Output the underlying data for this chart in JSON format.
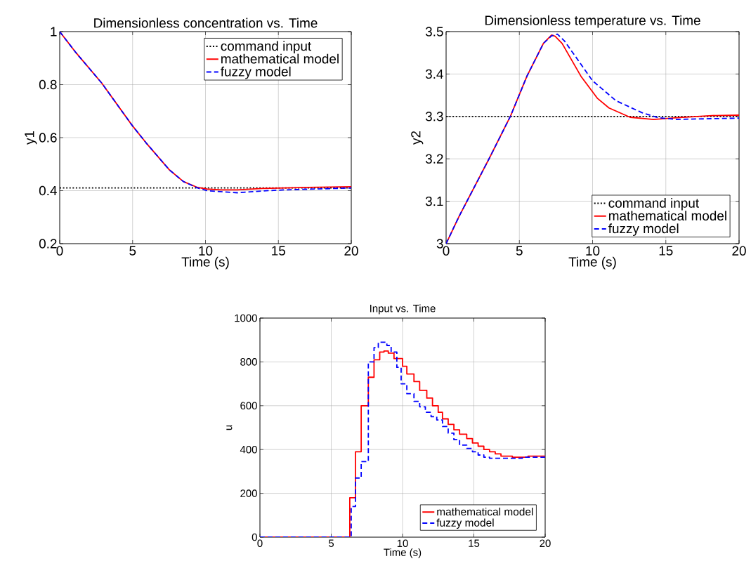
{
  "chart_data": [
    {
      "type": "line",
      "title": "Dimensionless concentration vs. Time",
      "xlabel": "Time (s)",
      "ylabel": "y1",
      "xlim": [
        0,
        20
      ],
      "ylim": [
        0.2,
        1
      ],
      "xticks": [
        0,
        5,
        10,
        15,
        20
      ],
      "yticks": [
        0.2,
        0.4,
        0.6,
        0.8,
        1
      ],
      "grid": true,
      "legend": "top right",
      "series": [
        {
          "name": "command input",
          "color": "#000000",
          "line_style": "dotted",
          "x": [
            0,
            20
          ],
          "values": [
            0.41,
            0.41
          ]
        },
        {
          "name": "mathematical model",
          "color": "#ff0000",
          "line_style": "solid",
          "x": [
            0,
            1.12,
            2.88,
            4.97,
            5.93,
            7.53,
            8.49,
            9.46,
            10.1,
            11.06,
            12.2,
            13.9,
            17.1,
            20
          ],
          "values": [
            1,
            0.92,
            0.806,
            0.646,
            0.58,
            0.478,
            0.434,
            0.412,
            0.406,
            0.403,
            0.403,
            0.408,
            0.412,
            0.415
          ]
        },
        {
          "name": "fuzzy model",
          "color": "#0000ff",
          "line_style": "dashed",
          "x": [
            0,
            1.12,
            2.88,
            4.97,
            5.93,
            7.53,
            8.49,
            9.46,
            10.1,
            12.2,
            13.9,
            15.5,
            20
          ],
          "values": [
            1,
            0.92,
            0.806,
            0.646,
            0.58,
            0.478,
            0.434,
            0.41,
            0.4,
            0.392,
            0.399,
            0.403,
            0.41
          ]
        }
      ]
    },
    {
      "type": "line",
      "title": "Dimensionless temperature vs. Time",
      "xlabel": "Time (s)",
      "ylabel": "y2",
      "xlim": [
        0,
        20
      ],
      "ylim": [
        3,
        3.5
      ],
      "xticks": [
        0,
        5,
        10,
        15,
        20
      ],
      "yticks": [
        3,
        3.1,
        3.2,
        3.3,
        3.4,
        3.5
      ],
      "grid": true,
      "legend": "bottom right",
      "series": [
        {
          "name": "command input",
          "color": "#000000",
          "line_style": "dotted",
          "x": [
            0,
            20
          ],
          "values": [
            3.3,
            3.3
          ]
        },
        {
          "name": "mathematical model",
          "color": "#ff0000",
          "line_style": "solid",
          "x": [
            0,
            0.88,
            2.96,
            4.4,
            5.52,
            6.64,
            7.2,
            7.44,
            7.92,
            9.2,
            10.32,
            11.12,
            12.56,
            14.16,
            15.76,
            18.16,
            20
          ],
          "values": [
            3.0,
            3.064,
            3.202,
            3.301,
            3.395,
            3.472,
            3.492,
            3.489,
            3.472,
            3.395,
            3.343,
            3.32,
            3.298,
            3.293,
            3.297,
            3.302,
            3.303
          ]
        },
        {
          "name": "fuzzy model",
          "color": "#0000ff",
          "line_style": "dashed",
          "x": [
            0,
            0.88,
            2.96,
            4.4,
            5.52,
            6.64,
            7.2,
            7.6,
            8.08,
            10,
            11.6,
            13.36,
            14.48,
            15.76,
            20
          ],
          "values": [
            3.0,
            3.064,
            3.202,
            3.301,
            3.395,
            3.472,
            3.49,
            3.494,
            3.478,
            3.384,
            3.337,
            3.309,
            3.297,
            3.293,
            3.296
          ]
        }
      ]
    },
    {
      "type": "step",
      "title": "Input vs. Time",
      "xlabel": "Time (s)",
      "ylabel": "u",
      "xlim": [
        0,
        20
      ],
      "ylim": [
        0,
        1000
      ],
      "xticks": [
        0,
        5,
        10,
        15,
        20
      ],
      "yticks": [
        0,
        200,
        400,
        600,
        800,
        1000
      ],
      "grid": true,
      "legend": "bottom right",
      "series": [
        {
          "name": "mathematical model",
          "color": "#ff0000",
          "line_style": "solid",
          "x": [
            0,
            6.3,
            6.7,
            7.1,
            7.6,
            8.0,
            8.4,
            8.7,
            9.0,
            9.4,
            10.0,
            10.3,
            10.8,
            11.2,
            11.7,
            12.1,
            12.5,
            12.8,
            13.2,
            13.6,
            14.0,
            14.5,
            14.9,
            15.3,
            15.7,
            16.1,
            16.5,
            16.9,
            17.3,
            17.7,
            18.8,
            20
          ],
          "values": [
            0,
            180,
            390,
            600,
            730,
            810,
            845,
            850,
            840,
            815,
            780,
            745,
            710,
            670,
            635,
            600,
            570,
            540,
            515,
            490,
            470,
            450,
            430,
            415,
            400,
            390,
            380,
            370,
            370,
            365,
            370,
            370
          ]
        },
        {
          "name": "fuzzy model",
          "color": "#0000ff",
          "line_style": "dashed",
          "x": [
            0,
            6.4,
            6.7,
            7.1,
            7.6,
            8.0,
            8.3,
            8.6,
            8.9,
            9.2,
            9.6,
            9.9,
            10.3,
            10.8,
            11.2,
            11.6,
            12.0,
            12.4,
            12.8,
            13.2,
            13.6,
            14.0,
            14.5,
            14.9,
            15.3,
            15.7,
            16.1,
            18.4,
            20
          ],
          "values": [
            0,
            140,
            270,
            345,
            800,
            865,
            890,
            890,
            875,
            845,
            775,
            700,
            655,
            620,
            595,
            570,
            550,
            535,
            505,
            475,
            445,
            420,
            405,
            390,
            375,
            365,
            360,
            365,
            365
          ]
        }
      ]
    }
  ]
}
